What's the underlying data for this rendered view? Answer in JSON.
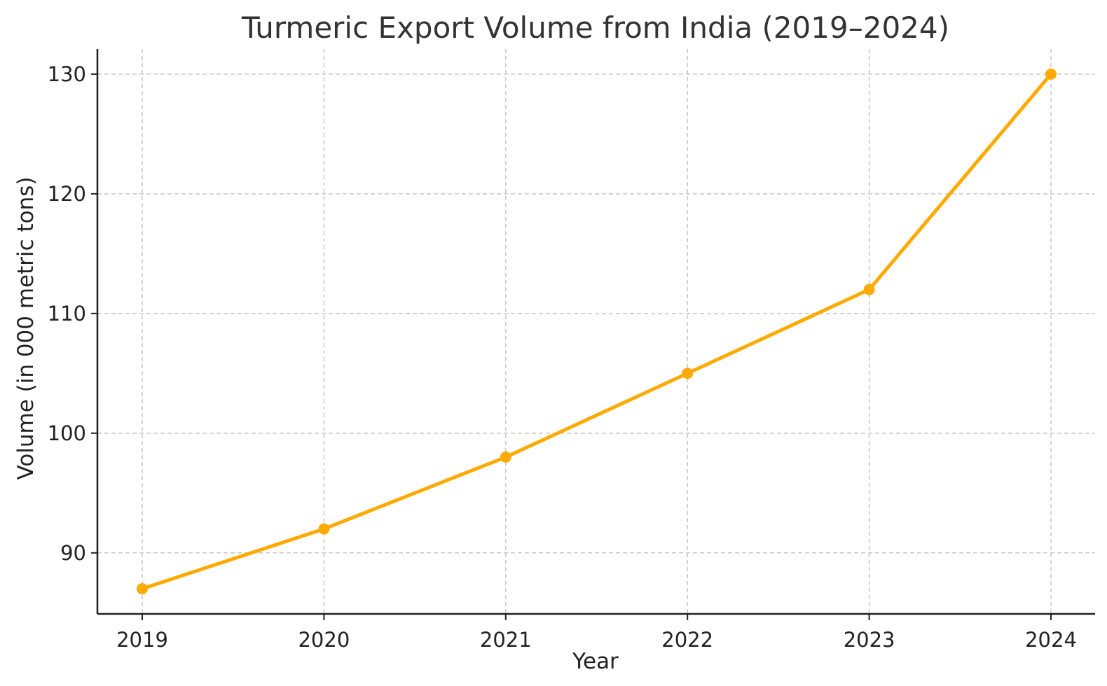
{
  "chart_data": {
    "type": "line",
    "title": "Turmeric Export Volume from India (2019–2024)",
    "xlabel": "Year",
    "ylabel": "Volume (in 000 metric tons)",
    "categories": [
      "2019",
      "2020",
      "2021",
      "2022",
      "2023",
      "2024"
    ],
    "series": [
      {
        "values": [
          87,
          92,
          98,
          105,
          112,
          130
        ],
        "color": "#FFAA00",
        "marker": "circle"
      }
    ],
    "yticks": [
      90,
      100,
      110,
      120,
      130
    ],
    "ylim": [
      84.9,
      132.1
    ],
    "grid": true
  }
}
